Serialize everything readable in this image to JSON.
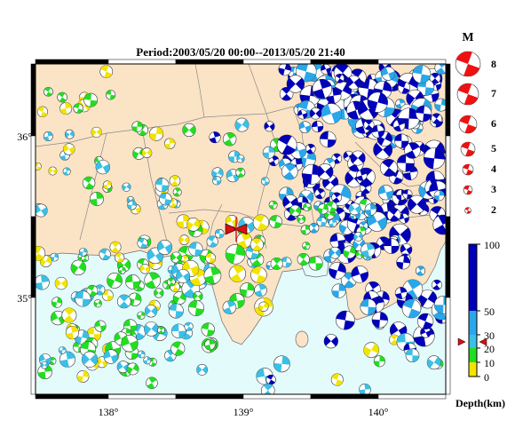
{
  "map": {
    "title": "Period:2003/05/20 00:00--2013/05/20 21:40",
    "lon_labels": [
      "138°",
      "139°",
      "140°"
    ],
    "lat_labels": [
      "36°",
      "35°"
    ]
  },
  "magnitude_legend": {
    "heading": "M",
    "entries": [
      "8",
      "7",
      "6",
      "5",
      "4",
      "3",
      "2"
    ]
  },
  "depth_legend": {
    "title": "Depth(km)",
    "ticks": [
      "100",
      "50",
      "30",
      "20",
      "10",
      "0"
    ]
  },
  "colors": {
    "land": "#fbe3c6",
    "sea": "#e4fbfb",
    "depth_0_10": "#f2e400",
    "depth_10_20": "#22dd22",
    "depth_20_30": "#3bbfe6",
    "depth_30_50": "#2aa7e8",
    "depth_50_100": "#0000b8",
    "legend_red": "#ee1111",
    "marker_red": "#d81010"
  },
  "legend_marker": {
    "label": "red triangles",
    "depth_km": 25
  }
}
